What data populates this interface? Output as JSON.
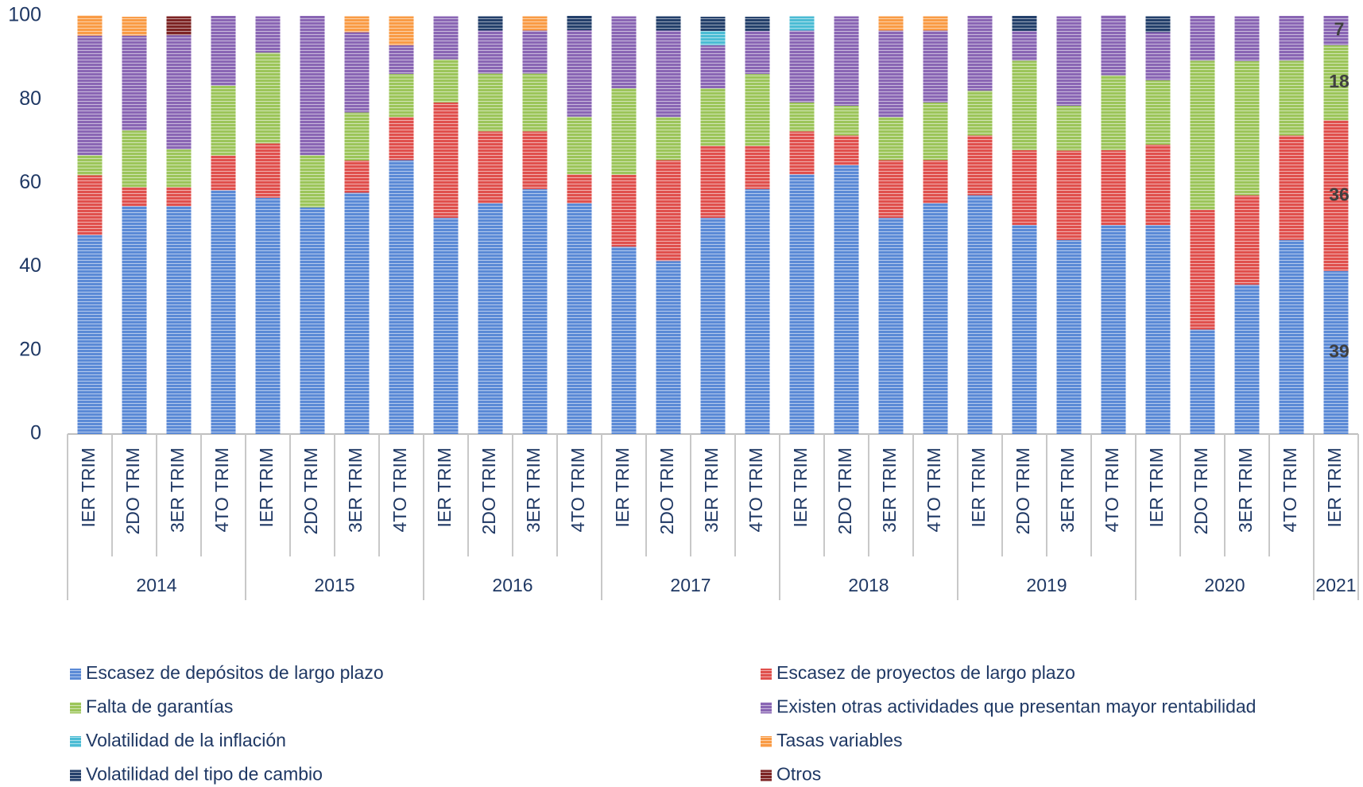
{
  "chart_data": {
    "type": "stacked_bar",
    "categories": [
      "IER TRIM",
      "2DO TRIM",
      "3ER TRIM",
      "4TO TRIM",
      "IER TRIM",
      "2DO TRIM",
      "3ER TRIM",
      "4TO TRIM",
      "IER TRIM",
      "2DO TRIM",
      "3ER TRIM",
      "4TO TRIM",
      "IER TRIM",
      "2DO TRIM",
      "3ER TRIM",
      "4TO TRIM",
      "IER TRIM",
      "2DO TRIM",
      "3ER TRIM",
      "4TO TRIM",
      "IER TRIM",
      "2DO TRIM",
      "3ER TRIM",
      "4TO TRIM",
      "IER TRIM",
      "2DO TRIM",
      "3ER TRIM",
      "4TO TRIM",
      "IER TRIM"
    ],
    "years": [
      "2014",
      null,
      null,
      null,
      "2015",
      null,
      null,
      null,
      "2016",
      null,
      null,
      null,
      "2017",
      null,
      null,
      null,
      "2018",
      null,
      null,
      null,
      "2019",
      null,
      null,
      null,
      "2020",
      null,
      null,
      null,
      "2021"
    ],
    "ylim": [
      0,
      100
    ],
    "yticks": [
      0,
      20,
      40,
      60,
      80,
      100
    ],
    "grid": false,
    "legend": "bottom",
    "series": [
      {
        "name": "Escasez de depósitos de largo plazo",
        "color": "#5b8ad6",
        "values": [
          47.6,
          54.5,
          54.5,
          58.3,
          56.5,
          54.2,
          57.7,
          65.5,
          51.7,
          55.2,
          58.6,
          55.2,
          44.8,
          41.4,
          51.7,
          58.6,
          62.1,
          64.3,
          51.7,
          55.2,
          57.1,
          50,
          46.4,
          50,
          50,
          25,
          35.7,
          46.4,
          39
        ],
        "value_labels": [
          null,
          null,
          null,
          null,
          null,
          null,
          null,
          null,
          null,
          null,
          null,
          null,
          null,
          null,
          null,
          null,
          null,
          null,
          null,
          null,
          null,
          null,
          null,
          null,
          null,
          null,
          null,
          null,
          "39"
        ]
      },
      {
        "name": "Escasez de proyectos de largo plazo",
        "color": "#e0504d",
        "values": [
          14.3,
          4.5,
          4.5,
          8.3,
          13,
          0,
          7.7,
          10.3,
          27.6,
          17.2,
          13.8,
          6.9,
          17.2,
          24.1,
          17.2,
          10.3,
          10.3,
          7.1,
          13.8,
          10.3,
          14.3,
          17.9,
          21.4,
          17.9,
          19.2,
          28.6,
          21.4,
          25,
          36
        ],
        "value_labels": [
          null,
          null,
          null,
          null,
          null,
          null,
          null,
          null,
          null,
          null,
          null,
          null,
          null,
          null,
          null,
          null,
          null,
          null,
          null,
          null,
          null,
          null,
          null,
          null,
          null,
          null,
          null,
          null,
          "36"
        ]
      },
      {
        "name": "Falta de garantías",
        "color": "#9cc55a",
        "values": [
          4.8,
          13.6,
          9.1,
          16.7,
          21.7,
          12.5,
          11.5,
          10.3,
          10.3,
          13.8,
          13.8,
          13.8,
          20.7,
          10.3,
          13.8,
          17.2,
          6.9,
          7.1,
          10.3,
          13.8,
          10.7,
          21.4,
          10.7,
          17.9,
          15.4,
          35.7,
          32.1,
          17.9,
          18
        ],
        "value_labels": [
          null,
          null,
          null,
          null,
          null,
          null,
          null,
          null,
          null,
          null,
          null,
          null,
          null,
          null,
          null,
          null,
          null,
          null,
          null,
          null,
          null,
          null,
          null,
          null,
          null,
          null,
          null,
          null,
          "18"
        ]
      },
      {
        "name": "Existen otras actividades que presentan mayor rentabilidad",
        "color": "#8a66b4",
        "values": [
          28.6,
          22.7,
          27.3,
          16.7,
          8.7,
          33.3,
          19.2,
          6.9,
          10.3,
          10.3,
          10.3,
          20.7,
          17.2,
          20.7,
          10.3,
          10.3,
          17.2,
          21.4,
          20.7,
          17.2,
          17.9,
          7.1,
          21.4,
          14.3,
          11.5,
          10.7,
          10.7,
          10.7,
          7
        ],
        "value_labels": [
          null,
          null,
          null,
          null,
          null,
          null,
          null,
          null,
          null,
          null,
          null,
          null,
          null,
          null,
          null,
          null,
          null,
          null,
          null,
          null,
          null,
          null,
          null,
          null,
          null,
          null,
          null,
          null,
          "7"
        ]
      },
      {
        "name": "Volatilidad de la inflación",
        "color": "#4bbcd4",
        "values": [
          0,
          0,
          0,
          0,
          0,
          0,
          0,
          0,
          0,
          0,
          0,
          0,
          0,
          0,
          3.4,
          0,
          3.4,
          0,
          0,
          0,
          0,
          0,
          0,
          0,
          0,
          0,
          0,
          0,
          0
        ]
      },
      {
        "name": "Tasas variables",
        "color": "#f99b45",
        "values": [
          4.8,
          4.5,
          0,
          0,
          0,
          0,
          3.8,
          6.9,
          0,
          0,
          3.4,
          0,
          0,
          0,
          0,
          0,
          0,
          0,
          3.4,
          3.4,
          0,
          0,
          0,
          0,
          0,
          0,
          0,
          0,
          0
        ]
      },
      {
        "name": "Volatilidad del tipo de cambio",
        "color": "#24406b",
        "values": [
          0,
          0,
          0,
          0,
          0,
          0,
          0,
          0,
          0,
          3.4,
          0,
          3.4,
          0,
          3.4,
          3.4,
          3.4,
          0,
          0,
          0,
          0,
          0,
          3.6,
          0,
          0,
          3.8,
          0,
          0,
          0,
          0
        ]
      },
      {
        "name": "Otros",
        "color": "#7d2424",
        "values": [
          0,
          0,
          4.5,
          0,
          0,
          0,
          0,
          0,
          0,
          0,
          0,
          0,
          0,
          0,
          0,
          0,
          0,
          0,
          0,
          0,
          0,
          0,
          0,
          0,
          0,
          0,
          0,
          0,
          0
        ]
      }
    ]
  }
}
